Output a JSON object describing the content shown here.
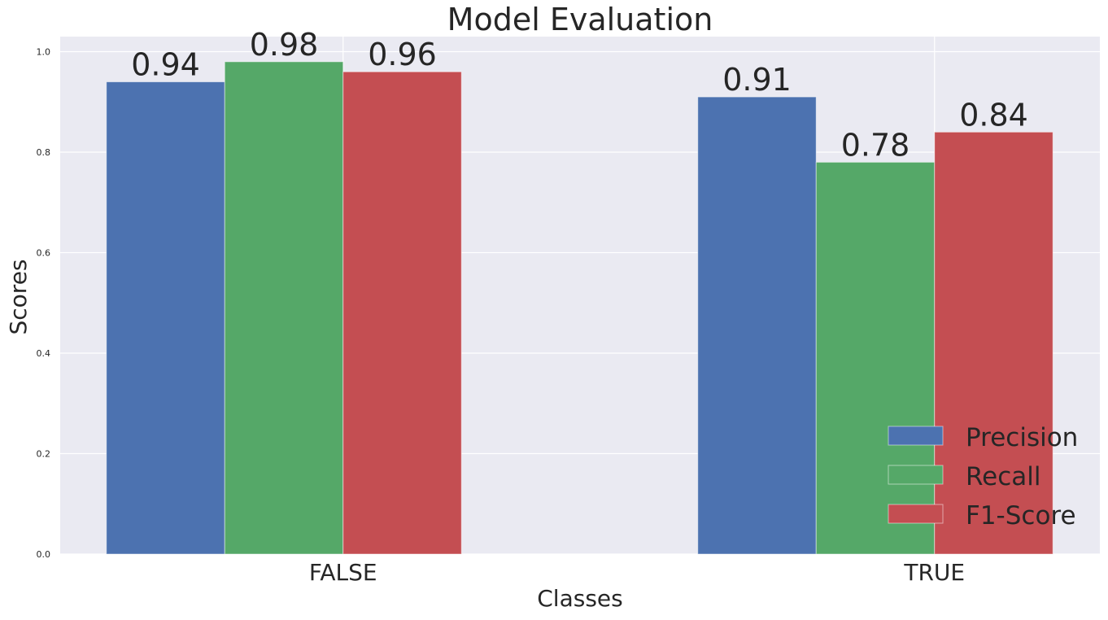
{
  "chart_data": {
    "type": "bar",
    "title": "Model Evaluation",
    "xlabel": "Classes",
    "ylabel": "Scores",
    "categories": [
      "FALSE",
      "TRUE"
    ],
    "series": [
      {
        "name": "Precision",
        "values": [
          0.94,
          0.91
        ],
        "color": "#4c72b0"
      },
      {
        "name": "Recall",
        "values": [
          0.98,
          0.78
        ],
        "color": "#55a868"
      },
      {
        "name": "F1-Score",
        "values": [
          0.96,
          0.84
        ],
        "color": "#c44e52"
      }
    ],
    "data_labels": [
      [
        "0.94",
        "0.91"
      ],
      [
        "0.98",
        "0.78"
      ],
      [
        "0.96",
        "0.84"
      ]
    ],
    "ylim": [
      0,
      1.03
    ],
    "yticks": [
      "0.0",
      "0.2",
      "0.4",
      "0.6",
      "0.8",
      "1.0"
    ],
    "grid": true,
    "legend_position": "bottom-right",
    "background": "#eaeaf2"
  }
}
